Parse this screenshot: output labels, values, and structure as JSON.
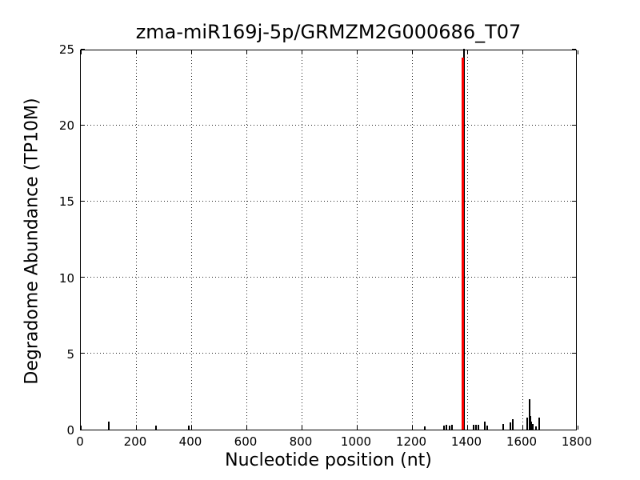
{
  "figure": {
    "background_color": "#ffffff",
    "text_color": "#000000"
  },
  "chart_data": {
    "type": "bar",
    "subtype": "degradome-t-plot-vlines",
    "title": "zma-miR169j-5p/GRMZM2G000686_T07",
    "xlabel": "Nucleotide position (nt)",
    "ylabel": "Degradome Abundance (TP10M)",
    "xlim": [
      0,
      1800
    ],
    "ylim": [
      0,
      25
    ],
    "xticks": [
      0,
      200,
      400,
      600,
      800,
      1000,
      1200,
      1400,
      1600,
      1800
    ],
    "yticks": [
      0,
      5,
      10,
      15,
      20,
      25
    ],
    "grid": true,
    "grid_linestyle": "dotted",
    "axis_color": "#000000",
    "legend": "none",
    "series": [
      {
        "name": "degradome-abundance",
        "color": "#000000",
        "line_width": 2,
        "points": [
          [
            101,
            0.5
          ],
          [
            273,
            0.25
          ],
          [
            390,
            0.25
          ],
          [
            1246,
            0.2
          ],
          [
            1316,
            0.25
          ],
          [
            1326,
            0.3
          ],
          [
            1335,
            0.25
          ],
          [
            1346,
            0.3
          ],
          [
            1389,
            25
          ],
          [
            1423,
            0.3
          ],
          [
            1433,
            0.3
          ],
          [
            1442,
            0.3
          ],
          [
            1465,
            0.55
          ],
          [
            1473,
            0.25
          ],
          [
            1530,
            0.35
          ],
          [
            1556,
            0.45
          ],
          [
            1564,
            0.7
          ],
          [
            1617,
            0.8
          ],
          [
            1625,
            2.0
          ],
          [
            1629,
            0.9
          ],
          [
            1633,
            0.55
          ],
          [
            1637,
            0.35
          ],
          [
            1649,
            0.2
          ],
          [
            1661,
            0.8
          ]
        ]
      },
      {
        "name": "mirna-cleavage-site",
        "color": "#ff0000",
        "line_width": 3,
        "points": [
          [
            1383,
            24.4
          ]
        ]
      }
    ]
  }
}
